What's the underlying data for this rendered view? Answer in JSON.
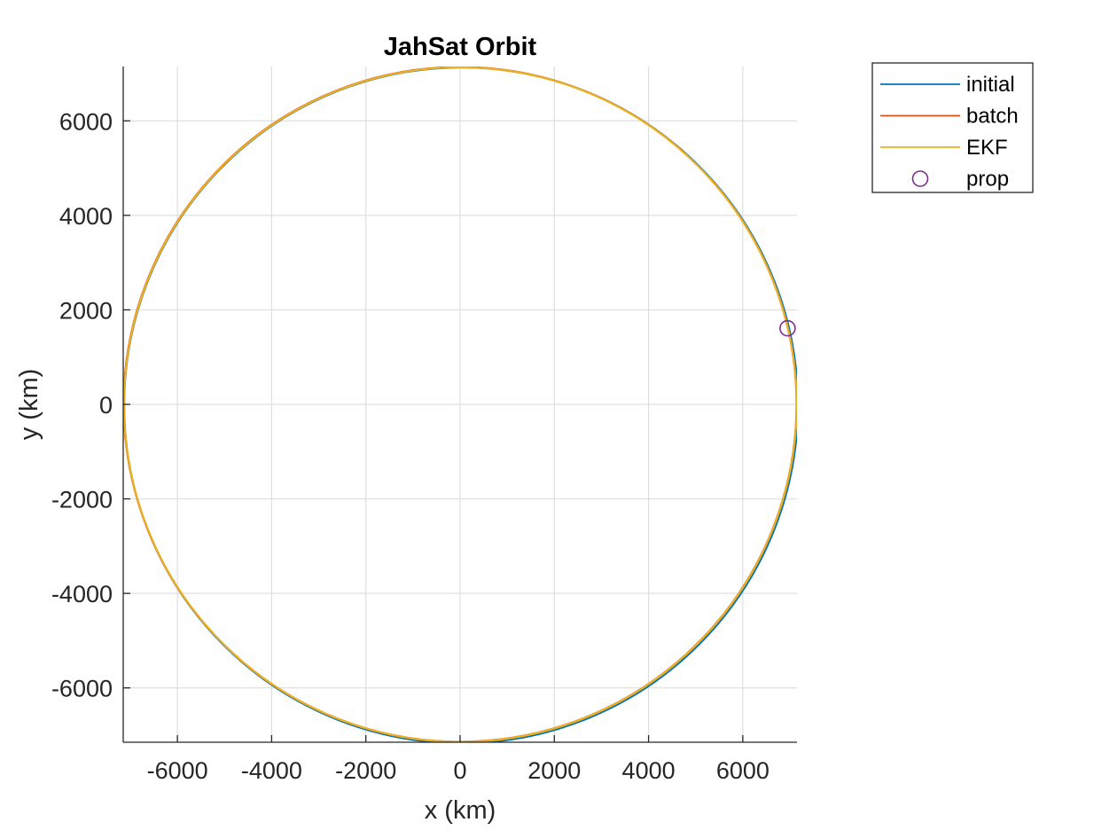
{
  "chart_data": {
    "type": "line",
    "title": "JahSat Orbit",
    "xlabel": "x (km)",
    "ylabel": "y (km)",
    "xlim": [
      -7150,
      7150
    ],
    "ylim": [
      -7150,
      7150
    ],
    "xticks": [
      -6000,
      -4000,
      -2000,
      0,
      2000,
      4000,
      6000
    ],
    "yticks": [
      -6000,
      -4000,
      -2000,
      0,
      2000,
      4000,
      6000
    ],
    "grid": true,
    "legend_position": "outside-top-right",
    "series": [
      {
        "name": "initial",
        "kind": "orbit",
        "color": "#0072bd",
        "radius_km": 7150,
        "center_km": [
          20,
          -20
        ]
      },
      {
        "name": "batch",
        "kind": "orbit",
        "color": "#d95319",
        "radius_km": 7140,
        "center_km": [
          0,
          0
        ]
      },
      {
        "name": "EKF",
        "kind": "orbit",
        "color": "#edb120",
        "radius_km": 7138,
        "center_km": [
          5,
          -5
        ]
      },
      {
        "name": "prop",
        "kind": "marker",
        "color": "#7e2f8e",
        "marker": "circle",
        "x": [
          6950
        ],
        "y": [
          1610
        ]
      }
    ]
  }
}
